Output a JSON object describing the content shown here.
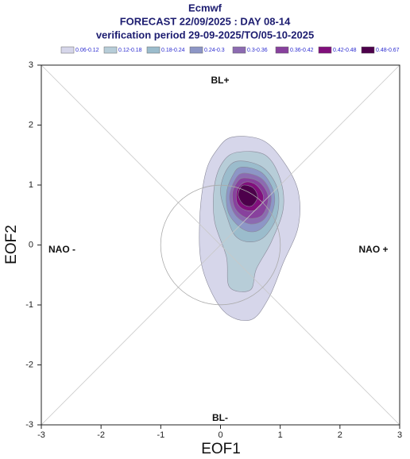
{
  "chart_data": {
    "type": "contour",
    "title": [
      "Ecmwf",
      "FORECAST 22/09/2025 : DAY 08-14",
      "verification period 29-09-2025/TO/05-10-2025"
    ],
    "x_label": "EOF1",
    "y_label": "EOF2",
    "annotations": [
      "BL+",
      "BL-",
      "NAO -",
      "NAO +"
    ],
    "xlim": [
      -3,
      3
    ],
    "ylim": [
      -3,
      3
    ],
    "xticks": [
      -3,
      -2,
      -1,
      0,
      1,
      2,
      3
    ],
    "yticks": [
      -3,
      -2,
      -1,
      0,
      1,
      2,
      3
    ],
    "contours": [
      {
        "name": "0.06-0.12",
        "color": "#d6d6ea",
        "x": [
          0.2,
          0.7,
          1.05,
          1.3,
          1.3,
          1.05,
          0.8,
          0.5,
          0.05,
          -0.3,
          -0.35,
          -0.25,
          -0.05
        ],
        "y": [
          1.8,
          1.75,
          1.4,
          0.9,
          0.3,
          -0.3,
          -0.9,
          -1.25,
          -1.1,
          -0.4,
          0.4,
          1.2,
          1.6
        ]
      },
      {
        "name": "0.12-0.18",
        "color": "#b7cdd8",
        "x": [
          0.3,
          0.75,
          1.0,
          1.05,
          0.85,
          0.6,
          0.5,
          0.15,
          0.1,
          -0.1,
          -0.1,
          0.05
        ],
        "y": [
          1.55,
          1.5,
          1.1,
          0.6,
          0.05,
          -0.4,
          -0.75,
          -0.7,
          -0.2,
          0.4,
          1.0,
          1.4
        ]
      },
      {
        "name": "0.18-0.24",
        "color": "#9bbccc",
        "x": [
          0.3,
          0.7,
          0.95,
          0.95,
          0.75,
          0.5,
          0.25,
          0.1,
          0.0,
          0.1
        ],
        "y": [
          1.4,
          1.3,
          0.95,
          0.5,
          0.15,
          0.05,
          0.15,
          0.5,
          0.9,
          1.25
        ]
      },
      {
        "name": "0.24-0.3",
        "color": "#8d96c6",
        "x": [
          0.35,
          0.7,
          0.9,
          0.85,
          0.65,
          0.4,
          0.15,
          0.1,
          0.2
        ],
        "y": [
          1.3,
          1.2,
          0.85,
          0.5,
          0.25,
          0.25,
          0.5,
          0.85,
          1.15
        ]
      },
      {
        "name": "0.3-0.36",
        "color": "#8c6bb1",
        "x": [
          0.4,
          0.7,
          0.85,
          0.75,
          0.5,
          0.25,
          0.15,
          0.25
        ],
        "y": [
          1.2,
          1.1,
          0.8,
          0.45,
          0.35,
          0.5,
          0.8,
          1.1
        ]
      },
      {
        "name": "0.36-0.42",
        "color": "#88419d",
        "x": [
          0.4,
          0.65,
          0.8,
          0.7,
          0.45,
          0.25,
          0.2,
          0.28
        ],
        "y": [
          1.12,
          1.05,
          0.8,
          0.5,
          0.45,
          0.6,
          0.85,
          1.05
        ]
      },
      {
        "name": "0.42-0.48",
        "color": "#810f7c",
        "x": [
          0.42,
          0.6,
          0.72,
          0.62,
          0.42,
          0.28,
          0.28
        ],
        "y": [
          1.05,
          1.0,
          0.8,
          0.6,
          0.58,
          0.7,
          0.92
        ]
      },
      {
        "name": "0.48-0.67",
        "color": "#4d004b",
        "x": [
          0.4,
          0.55,
          0.62,
          0.52,
          0.38,
          0.3,
          0.33
        ],
        "y": [
          1.0,
          0.95,
          0.8,
          0.65,
          0.68,
          0.82,
          0.95
        ]
      }
    ]
  }
}
